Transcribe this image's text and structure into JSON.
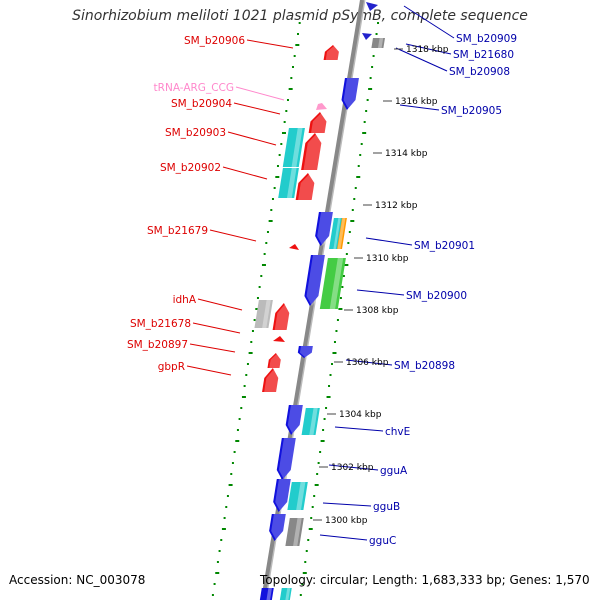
{
  "title": "Sinorhizobium meliloti 1021 plasmid pSymB, complete sequence",
  "accession": "Accession: NC_003078",
  "summary": "Topology: circular; Length: 1,683,333 bp; Genes: 1,570",
  "colors": {
    "forward_label": "#dd0000",
    "reverse_label": "#0000aa",
    "trna_label": "#ff88cc",
    "axis": "#888888",
    "tick_dots": "#008800",
    "forward_gene": "#ee1111",
    "reverse_gene": "#1111dd",
    "cyan": "#22cccc",
    "gray": "#888888",
    "light_gray": "#bbbbbb",
    "green": "#44cc44",
    "orange": "#ff9900"
  },
  "forward_genes": [
    {
      "name": "SM_b20906"
    },
    {
      "name": "tRNA-ARG_CCG"
    },
    {
      "name": "SM_b20904"
    },
    {
      "name": "SM_b20903"
    },
    {
      "name": "SM_b20902"
    },
    {
      "name": "SM_b21679"
    },
    {
      "name": "idhA"
    },
    {
      "name": "SM_b21678"
    },
    {
      "name": "SM_b20897"
    },
    {
      "name": "gbpR"
    }
  ],
  "reverse_genes": [
    {
      "name": "SM_b20909"
    },
    {
      "name": "SM_b21680"
    },
    {
      "name": "SM_b20908"
    },
    {
      "name": "SM_b20905"
    },
    {
      "name": "SM_b20901"
    },
    {
      "name": "SM_b20900"
    },
    {
      "name": "SM_b20898"
    },
    {
      "name": "chvE"
    },
    {
      "name": "gguA"
    },
    {
      "name": "gguB"
    },
    {
      "name": "gguC"
    }
  ],
  "scale_ticks": [
    "1318 kbp",
    "1316 kbp",
    "1314 kbp",
    "1312 kbp",
    "1310 kbp",
    "1308 kbp",
    "1306 kbp",
    "1304 kbp",
    "1302 kbp",
    "1300 kbp"
  ]
}
